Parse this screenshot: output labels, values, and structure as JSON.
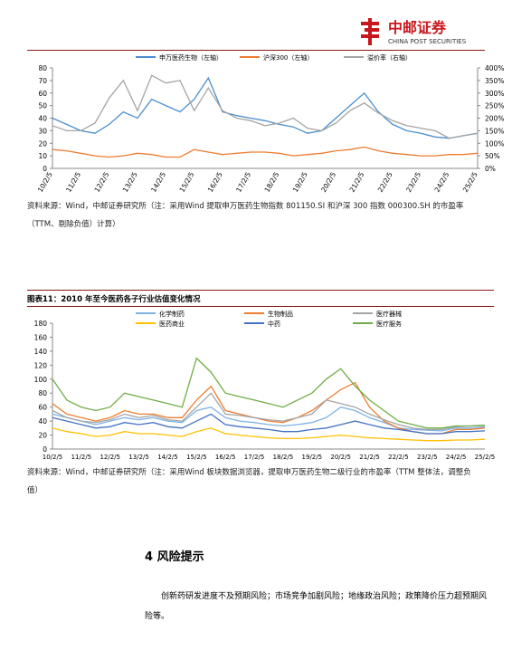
{
  "header": {
    "logo_cn": "中邮证券",
    "logo_en": "CHINA POST SECURITIES"
  },
  "chart_data": [
    {
      "type": "line",
      "categories": [
        "10/2/5",
        null,
        "11/2/5",
        null,
        "12/2/5",
        null,
        "13/2/5",
        null,
        "14/2/5",
        null,
        "15/2/5",
        null,
        "16/2/5",
        null,
        "17/2/5",
        null,
        "18/2/5",
        null,
        "19/2/5",
        null,
        "20/2/5",
        null,
        "21/2/5",
        null,
        "22/2/5",
        null,
        "23/2/5",
        null,
        "24/2/5",
        null,
        "25/2/5"
      ],
      "series": [
        {
          "name": "申万医药生物（左轴）",
          "color": "#4a8fd0",
          "values": [
            40,
            35,
            30,
            28,
            35,
            45,
            40,
            55,
            50,
            45,
            55,
            72,
            45,
            42,
            40,
            38,
            35,
            33,
            28,
            30,
            40,
            50,
            60,
            45,
            35,
            30,
            28,
            25,
            24,
            26,
            28
          ]
        },
        {
          "name": "沪深300（左轴）",
          "color": "#ed7d31",
          "values": [
            15,
            14,
            12,
            10,
            9,
            10,
            12,
            11,
            9,
            9,
            15,
            13,
            11,
            12,
            13,
            13,
            12,
            10,
            11,
            12,
            14,
            15,
            17,
            14,
            12,
            11,
            10,
            10,
            11,
            11,
            12
          ]
        },
        {
          "name": "溢价率（右轴）",
          "color": "#a5a5a5",
          "axis": "y2",
          "values": [
            170,
            150,
            150,
            180,
            280,
            350,
            230,
            370,
            340,
            350,
            230,
            320,
            230,
            200,
            190,
            170,
            180,
            200,
            160,
            150,
            180,
            230,
            260,
            220,
            190,
            170,
            160,
            150,
            120,
            130,
            140
          ]
        }
      ],
      "ylim": [
        0,
        80
      ],
      "yticks": [
        0,
        10,
        20,
        30,
        40,
        50,
        60,
        70,
        80
      ],
      "y2lim": [
        0,
        400
      ],
      "y2ticks": [
        {
          "value": 0,
          "label": "0%"
        },
        {
          "value": 50,
          "label": "50%"
        },
        {
          "value": 100,
          "label": "100%"
        },
        {
          "value": 150,
          "label": "150%"
        },
        {
          "value": 200,
          "label": "200%"
        },
        {
          "value": 250,
          "label": "250%"
        },
        {
          "value": 300,
          "label": "300%"
        },
        {
          "value": 350,
          "label": "350%"
        },
        {
          "value": 400,
          "label": "400%"
        }
      ]
    },
    {
      "type": "line",
      "title": "图表11：2010 年至今医药各子行业估值变化情况",
      "categories": [
        "10/2/5",
        null,
        "11/2/5",
        null,
        "12/2/5",
        null,
        "13/2/5",
        null,
        "14/2/5",
        null,
        "15/2/5",
        null,
        "16/2/5",
        null,
        "17/2/5",
        null,
        "18/2/5",
        null,
        "19/2/5",
        null,
        "20/2/5",
        null,
        "21/2/5",
        null,
        "22/2/5",
        null,
        "23/2/5",
        null,
        "24/2/5",
        null,
        "25/2/5"
      ],
      "series": [
        {
          "name": "化学制药",
          "color": "#7fb2e5",
          "values": [
            50,
            45,
            40,
            35,
            40,
            45,
            42,
            45,
            40,
            38,
            55,
            60,
            45,
            40,
            38,
            35,
            33,
            35,
            38,
            45,
            60,
            55,
            45,
            38,
            30,
            28,
            27,
            26,
            30,
            30,
            32
          ]
        },
        {
          "name": "生物制品",
          "color": "#ed7d31",
          "values": [
            65,
            50,
            45,
            40,
            45,
            55,
            50,
            50,
            45,
            45,
            70,
            90,
            55,
            50,
            45,
            40,
            38,
            45,
            55,
            70,
            85,
            95,
            60,
            40,
            30,
            25,
            22,
            22,
            28,
            28,
            30
          ]
        },
        {
          "name": "医疗器械",
          "color": "#a5a5a5",
          "values": [
            55,
            45,
            40,
            38,
            42,
            50,
            45,
            48,
            42,
            40,
            60,
            80,
            50,
            48,
            45,
            42,
            40,
            45,
            50,
            70,
            65,
            60,
            50,
            42,
            35,
            30,
            28,
            28,
            32,
            33,
            34
          ]
        },
        {
          "name": "医药商业",
          "color": "#ffc000",
          "values": [
            30,
            25,
            22,
            18,
            20,
            25,
            22,
            22,
            20,
            18,
            25,
            30,
            22,
            20,
            18,
            16,
            15,
            15,
            16,
            18,
            20,
            18,
            16,
            15,
            14,
            13,
            12,
            12,
            13,
            13,
            14
          ]
        },
        {
          "name": "中药",
          "color": "#4472c4",
          "values": [
            45,
            40,
            35,
            30,
            32,
            38,
            35,
            38,
            32,
            30,
            40,
            50,
            35,
            32,
            30,
            28,
            25,
            25,
            28,
            30,
            35,
            40,
            35,
            30,
            28,
            25,
            22,
            22,
            25,
            25,
            26
          ]
        },
        {
          "name": "医疗服务",
          "color": "#70ad47",
          "values": [
            100,
            70,
            60,
            55,
            60,
            80,
            75,
            70,
            65,
            60,
            130,
            110,
            80,
            75,
            70,
            65,
            60,
            70,
            80,
            100,
            115,
            90,
            70,
            55,
            40,
            35,
            30,
            30,
            33,
            33,
            34
          ]
        }
      ],
      "ylim": [
        0,
        180
      ],
      "yticks": [
        0,
        20,
        40,
        60,
        80,
        100,
        120,
        140,
        160,
        180
      ]
    }
  ],
  "notes": [
    "资料来源：Wind，中邮证券研究所（注：采用Wind 提取申万医药生物指数 801150.SI 和沪深 300 指数 000300.SH 的市盈率（TTM、剔除负值）计算）",
    "资料来源：Wind，中邮证券研究所（注：采用Wind 板块数据浏览器，提取申万医药生物二级行业的市盈率（TTM 整体法，调整负值）"
  ],
  "section": {
    "heading": "4 风险提示",
    "paragraph": "创新药研发进度不及预期风险；市场竞争加剧风险；地缘政治风险；政策降价压力超预期风险等。"
  }
}
